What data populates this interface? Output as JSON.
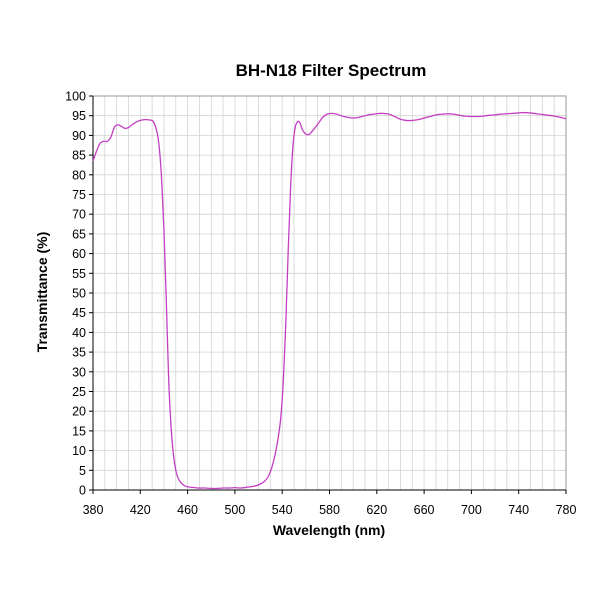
{
  "chart_data": {
    "type": "line",
    "title": "BH-N18 Filter Spectrum",
    "xlabel": "Wavelength (nm)",
    "ylabel": "Transmittance (%)",
    "xlim": [
      380,
      780
    ],
    "ylim": [
      0,
      100
    ],
    "xticks": [
      380,
      420,
      460,
      500,
      540,
      580,
      620,
      660,
      700,
      740,
      780
    ],
    "yticks": [
      0,
      5,
      10,
      15,
      20,
      25,
      30,
      35,
      40,
      45,
      50,
      55,
      60,
      65,
      70,
      75,
      80,
      85,
      90,
      95,
      100
    ],
    "grid": true,
    "line_color": "#c43ec4",
    "series": [
      {
        "x": [
          380,
          383,
          386,
          389,
          392,
          395,
          398,
          401,
          404,
          407,
          410,
          413,
          416,
          420,
          424,
          428,
          431,
          434,
          436,
          438,
          440,
          442,
          444,
          446,
          448,
          450,
          452,
          454,
          456,
          458,
          460,
          463,
          466,
          470,
          475,
          480,
          485,
          490,
          495,
          500,
          505,
          510,
          515,
          520,
          525,
          528,
          531,
          534,
          537,
          539,
          541,
          543,
          545,
          547,
          549,
          551,
          553,
          555,
          557,
          559,
          561,
          563,
          566,
          570,
          574,
          578,
          582,
          586,
          590,
          595,
          600,
          605,
          610,
          615,
          620,
          625,
          630,
          635,
          640,
          645,
          650,
          655,
          660,
          665,
          670,
          675,
          680,
          685,
          690,
          695,
          700,
          705,
          710,
          715,
          720,
          725,
          730,
          735,
          740,
          745,
          750,
          755,
          760,
          765,
          770,
          775,
          780
        ],
        "y": [
          83.5,
          86,
          88,
          88.5,
          88.5,
          89.5,
          92,
          92.7,
          92.3,
          91.8,
          92,
          92.7,
          93.3,
          93.8,
          94,
          93.9,
          93.5,
          91,
          87,
          79,
          66,
          48,
          28,
          16,
          9,
          5,
          3,
          2,
          1.4,
          1,
          0.8,
          0.7,
          0.6,
          0.5,
          0.5,
          0.4,
          0.4,
          0.5,
          0.5,
          0.6,
          0.5,
          0.7,
          0.9,
          1.3,
          2.2,
          3.3,
          5.5,
          9,
          14,
          19,
          28,
          42,
          60,
          76,
          87,
          92,
          93.5,
          93.2,
          91.5,
          90.6,
          90.2,
          90.3,
          91.3,
          92.8,
          94.5,
          95.4,
          95.6,
          95.4,
          95,
          94.6,
          94.4,
          94.6,
          95,
          95.3,
          95.5,
          95.6,
          95.4,
          94.8,
          94.1,
          93.8,
          93.8,
          94,
          94.4,
          94.8,
          95.2,
          95.4,
          95.5,
          95.4,
          95.1,
          94.9,
          94.8,
          94.8,
          94.9,
          95.1,
          95.2,
          95.4,
          95.5,
          95.6,
          95.7,
          95.8,
          95.7,
          95.5,
          95.3,
          95.1,
          94.9,
          94.6,
          94.2
        ]
      }
    ]
  }
}
